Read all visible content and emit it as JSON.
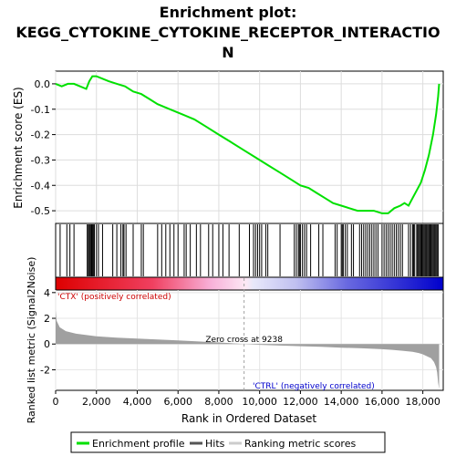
{
  "chart_data": {
    "type": "line",
    "title_line1": "Enrichment plot:",
    "title_line2": "KEGG_CYTOKINE_CYTOKINE_RECEPTOR_INTERACTIO",
    "title_line3": "N",
    "es_panel": {
      "ylabel": "Enrichment score (ES)",
      "ylim": [
        -0.55,
        0.05
      ],
      "yticks": [
        "0.0",
        "-0.1",
        "-0.2",
        "-0.3",
        "-0.4",
        "-0.5"
      ],
      "ytick_values": [
        0.0,
        -0.1,
        -0.2,
        -0.3,
        -0.4,
        -0.5
      ],
      "series": [
        {
          "name": "Enrichment profile",
          "color": "#00e000",
          "x": [
            0,
            300,
            600,
            900,
            1200,
            1500,
            1650,
            1800,
            2000,
            2300,
            2600,
            3000,
            3400,
            3800,
            4200,
            4600,
            5000,
            5600,
            6200,
            6800,
            7400,
            8000,
            8600,
            9200,
            9800,
            10400,
            11000,
            11600,
            12000,
            12400,
            12800,
            13200,
            13600,
            14000,
            14400,
            14800,
            15200,
            15600,
            16000,
            16300,
            16600,
            16900,
            17100,
            17300,
            17500,
            17700,
            17900,
            18100,
            18300,
            18500,
            18650,
            18750,
            18800
          ],
          "y": [
            0.0,
            -0.01,
            0.0,
            0.0,
            -0.01,
            -0.02,
            0.01,
            0.03,
            0.03,
            0.02,
            0.01,
            0.0,
            -0.01,
            -0.03,
            -0.04,
            -0.06,
            -0.08,
            -0.1,
            -0.12,
            -0.14,
            -0.17,
            -0.2,
            -0.23,
            -0.26,
            -0.29,
            -0.32,
            -0.35,
            -0.38,
            -0.4,
            -0.41,
            -0.43,
            -0.45,
            -0.47,
            -0.48,
            -0.49,
            -0.5,
            -0.5,
            -0.5,
            -0.51,
            -0.51,
            -0.49,
            -0.48,
            -0.47,
            -0.48,
            -0.45,
            -0.42,
            -0.39,
            -0.34,
            -0.28,
            -0.2,
            -0.12,
            -0.05,
            0.0
          ]
        }
      ]
    },
    "hits": [
      220,
      550,
      700,
      900,
      1550,
      1600,
      1650,
      1700,
      1750,
      1780,
      1820,
      1850,
      1900,
      2000,
      2100,
      2300,
      2800,
      3000,
      3200,
      3300,
      3350,
      3450,
      3800,
      4200,
      4300,
      5000,
      5200,
      5400,
      5600,
      5800,
      6000,
      6300,
      6400,
      6600,
      6900,
      7100,
      7500,
      7700,
      8000,
      8200,
      8500,
      9000,
      9500,
      9700,
      9800,
      9900,
      10000,
      10100,
      10300,
      10400,
      11000,
      11700,
      11800,
      11900,
      11950,
      12000,
      12100,
      12200,
      12300,
      12500,
      12900,
      13100,
      13700,
      13800,
      14000,
      14050,
      14100,
      14200,
      14300,
      14500,
      14600,
      14900,
      15000,
      15100,
      15200,
      15300,
      15400,
      15500,
      15600,
      15700,
      15800,
      16000,
      16100,
      16200,
      16300,
      16400,
      16500,
      16600,
      16700,
      16800,
      16900,
      17000,
      17300,
      17400,
      17500,
      17550,
      17600,
      17700,
      17750,
      17800,
      17850,
      17900,
      17950,
      18000,
      18050,
      18100,
      18150,
      18200,
      18250,
      18300,
      18350,
      18400,
      18450,
      18500,
      18550,
      18600,
      18650,
      18700,
      18750
    ],
    "metric_panel": {
      "ylabel": "Ranked list metric (Signal2Noise)",
      "ylim": [
        -3.6,
        4.2
      ],
      "yticks": [
        "4",
        "2",
        "0",
        "-2"
      ],
      "ytick_values": [
        4,
        2,
        0,
        -2
      ],
      "pos_label": "'CTX' (positively correlated)",
      "neg_label": "'CTRL' (negatively correlated)",
      "zero_cross_label": "Zero cross at 9238",
      "zero_cross": 9238,
      "metric_x": [
        0,
        50,
        200,
        500,
        1000,
        2000,
        3000,
        4000,
        5000,
        6000,
        7000,
        8000,
        9238,
        10000,
        11000,
        12000,
        13000,
        14000,
        15000,
        16000,
        16500,
        17000,
        17500,
        17800,
        18000,
        18200,
        18400,
        18550,
        18650,
        18700,
        18750,
        18800
      ],
      "metric_y": [
        2.6,
        1.8,
        1.3,
        1.0,
        0.8,
        0.6,
        0.5,
        0.42,
        0.35,
        0.28,
        0.2,
        0.12,
        0.0,
        -0.06,
        -0.12,
        -0.17,
        -0.22,
        -0.28,
        -0.33,
        -0.4,
        -0.45,
        -0.52,
        -0.6,
        -0.7,
        -0.8,
        -0.95,
        -1.1,
        -1.4,
        -1.8,
        -2.2,
        -3.0,
        -3.5
      ]
    },
    "xaxis": {
      "label": "Rank in Ordered Dataset",
      "xlim": [
        0,
        19000
      ],
      "ticks": [
        "0",
        "2,000",
        "4,000",
        "6,000",
        "8,000",
        "10,000",
        "12,000",
        "14,000",
        "16,000",
        "18,000"
      ],
      "tick_values": [
        0,
        2000,
        4000,
        6000,
        8000,
        10000,
        12000,
        14000,
        16000,
        18000
      ],
      "n_genes": 18800
    },
    "legend": {
      "placement": "bottom",
      "items": [
        {
          "label": "Enrichment profile",
          "color": "#00e000"
        },
        {
          "label": "Hits",
          "color": "#555555"
        },
        {
          "label": "Ranking metric scores",
          "color": "#cccccc"
        }
      ]
    },
    "colors": {
      "positive": "#dd0000",
      "negative": "#0000cc",
      "metric_fill": "#a0a0a0",
      "pos_label": "#cc0000",
      "neg_label": "#0000cc"
    }
  }
}
